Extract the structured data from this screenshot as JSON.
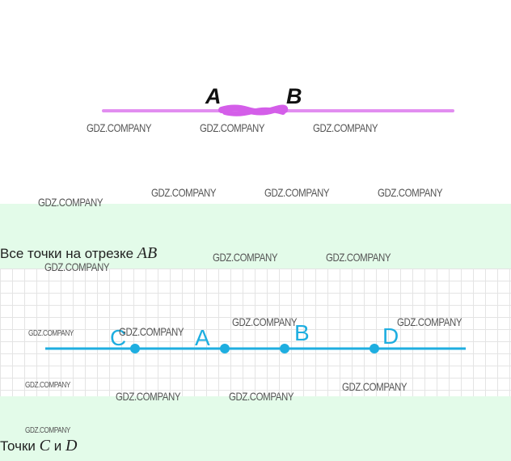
{
  "top_figure": {
    "point_a": "A",
    "point_b": "B",
    "line_color": "#e28ef0",
    "highlight_color": "#d45ee9"
  },
  "captions": {
    "first_text": "Все точки на отрезке ",
    "first_math": "AB",
    "second_text": "Точки ",
    "second_math_c": "C",
    "second_mid": " и ",
    "second_math_d": "D"
  },
  "bottom_figure": {
    "points": [
      "C",
      "A",
      "B",
      "D"
    ],
    "line_color": "#1eaee0"
  },
  "watermark": "GDZ.COMPANY",
  "colors": {
    "band": "#e3fbe9",
    "grid": "#e4e4e4"
  }
}
